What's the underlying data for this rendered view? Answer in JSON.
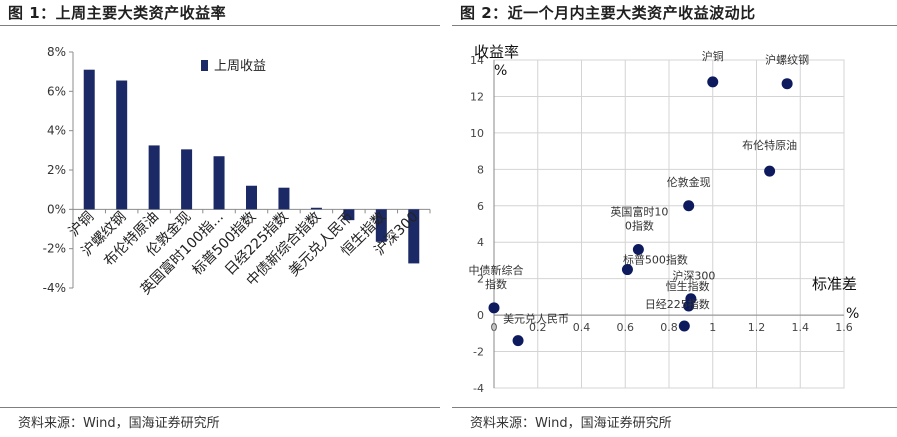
{
  "left": {
    "title": "图 1：上周主要大类资产收益率",
    "source": "资料来源：Wind，国海证券研究所"
  },
  "right": {
    "title": "图 2：近一个月内主要大类资产收益波动比",
    "source": "资料来源：Wind，国海证券研究所"
  },
  "chart_data": [
    {
      "type": "bar",
      "title": "上周主要大类资产收益率",
      "legend": "上周收益",
      "legend_position": "top-right",
      "color": "#1b2a66",
      "categories": [
        "沪铜",
        "沪螺纹钢",
        "布伦特原油",
        "伦敦金现",
        "英国富时100指...",
        "标普500指数",
        "日经225指数",
        "中债新综合指数",
        "美元兑人民币",
        "恒生指数",
        "沪深300"
      ],
      "values": [
        7.1,
        6.55,
        3.25,
        3.05,
        2.7,
        1.2,
        1.1,
        0.08,
        -0.55,
        -1.65,
        -2.75
      ],
      "yticks": [
        "8%",
        "6%",
        "4%",
        "2%",
        "0%",
        "-2%",
        "-4%"
      ],
      "ylim": [
        -4,
        8
      ],
      "ylabel": "",
      "xlabel": ""
    },
    {
      "type": "scatter",
      "title": "近一个月内主要大类资产收益波动比",
      "xlabel": "标准差",
      "xunit": "%",
      "ylabel": "收益率",
      "yunit": "%",
      "xlim": [
        0,
        1.6
      ],
      "ylim": [
        -4,
        14
      ],
      "xticks": [
        "0",
        "0.2",
        "0.4",
        "0.6",
        "0.8",
        "1",
        "1.2",
        "1.4",
        "1.6"
      ],
      "yticks": [
        "14",
        "12",
        "10",
        "8",
        "6",
        "4",
        "2",
        "0",
        "-2",
        "-4"
      ],
      "grid": true,
      "color": "#0d1a5e",
      "points": [
        {
          "label": "沪铜",
          "x": 1.0,
          "y": 12.8
        },
        {
          "label": "沪螺纹钢",
          "x": 1.34,
          "y": 12.7
        },
        {
          "label": "布伦特原油",
          "x": 1.26,
          "y": 7.9
        },
        {
          "label": "伦敦金现",
          "x": 0.89,
          "y": 6.0
        },
        {
          "label": "英国富时100指数",
          "x": 0.66,
          "y": 3.6
        },
        {
          "label": "标普500指数",
          "x": 0.61,
          "y": 2.5
        },
        {
          "label": "中债新综合指数",
          "x": 0.0,
          "y": 0.4
        },
        {
          "label": "美元兑人民币",
          "x": 0.11,
          "y": -1.4
        },
        {
          "label": "沪深300",
          "x": 0.9,
          "y": 0.9
        },
        {
          "label": "恒生指数",
          "x": 0.89,
          "y": 0.5
        },
        {
          "label": "日经225指数",
          "x": 0.87,
          "y": -0.6
        }
      ]
    }
  ]
}
